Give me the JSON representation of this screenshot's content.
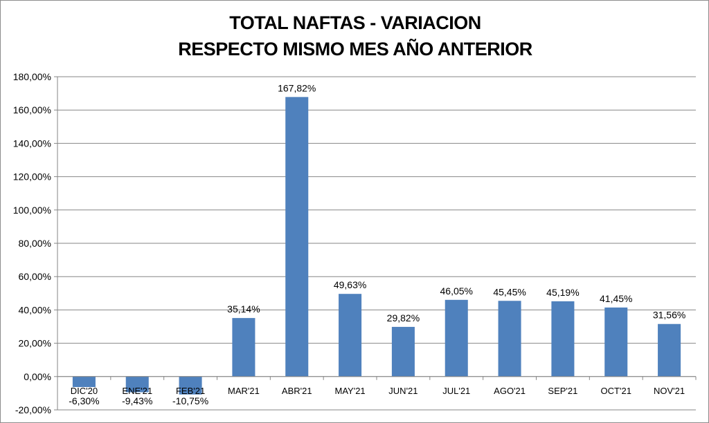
{
  "chart_data": {
    "type": "bar",
    "title_lines": [
      "TOTAL NAFTAS - VARIACION",
      "RESPECTO MISMO MES AÑO ANTERIOR"
    ],
    "categories": [
      "DIC'20",
      "ENE'21",
      "FEB'21",
      "MAR'21",
      "ABR'21",
      "MAY'21",
      "JUN'21",
      "JUL'21",
      "AGO'21",
      "SEP'21",
      "OCT'21",
      "NOV'21"
    ],
    "values": [
      -6.3,
      -9.43,
      -10.75,
      35.14,
      167.82,
      49.63,
      29.82,
      46.05,
      45.45,
      45.19,
      41.45,
      31.56
    ],
    "data_labels": [
      "-6,30%",
      "-9,43%",
      "-10,75%",
      "35,14%",
      "167,82%",
      "49,63%",
      "29,82%",
      "46,05%",
      "45,45%",
      "45,19%",
      "41,45%",
      "31,56%"
    ],
    "y_ticks": [
      -20,
      0,
      20,
      40,
      60,
      80,
      100,
      120,
      140,
      160,
      180
    ],
    "y_tick_labels": [
      "-20,00%",
      "0,00%",
      "20,00%",
      "40,00%",
      "60,00%",
      "80,00%",
      "100,00%",
      "120,00%",
      "140,00%",
      "160,00%",
      "180,00%"
    ],
    "ylim": [
      -20,
      180
    ],
    "grid": true,
    "bar_color": "#4f81bd"
  }
}
